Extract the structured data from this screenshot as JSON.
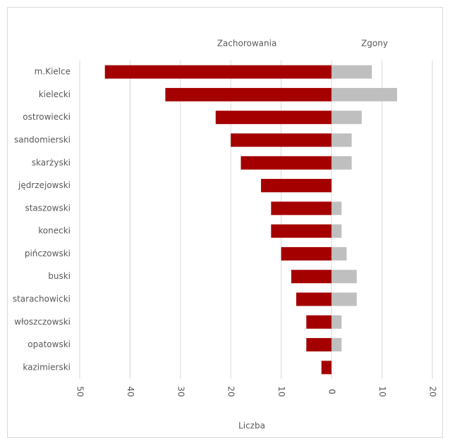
{
  "chart_data": {
    "type": "butterfly-bar",
    "x_label": "Liczba",
    "categories": [
      "m.Kielce",
      "kielecki",
      "ostrowiecki",
      "sandomierski",
      "skarżyski",
      "jędrzejowski",
      "staszowski",
      "konecki",
      "pińczowski",
      "buski",
      "starachowicki",
      "włoszczowski",
      "opatowski",
      "kazimierski"
    ],
    "series": [
      {
        "name": "Zachorowania",
        "color": "#a50000",
        "side": "left",
        "values": [
          45,
          33,
          23,
          20,
          18,
          14,
          12,
          12,
          10,
          8,
          7,
          5,
          5,
          2
        ]
      },
      {
        "name": "Zgony",
        "color": "#bfbfbf",
        "side": "right",
        "values": [
          8,
          13,
          6,
          4,
          4,
          0,
          2,
          2,
          3,
          5,
          5,
          2,
          2,
          0
        ]
      }
    ],
    "left": {
      "xlim": [
        0,
        50
      ],
      "xticks": [
        50,
        40,
        30,
        20,
        10,
        0
      ]
    },
    "right": {
      "xlim": [
        0,
        20
      ],
      "xticks": [
        0,
        10,
        20
      ]
    },
    "grid": true
  }
}
